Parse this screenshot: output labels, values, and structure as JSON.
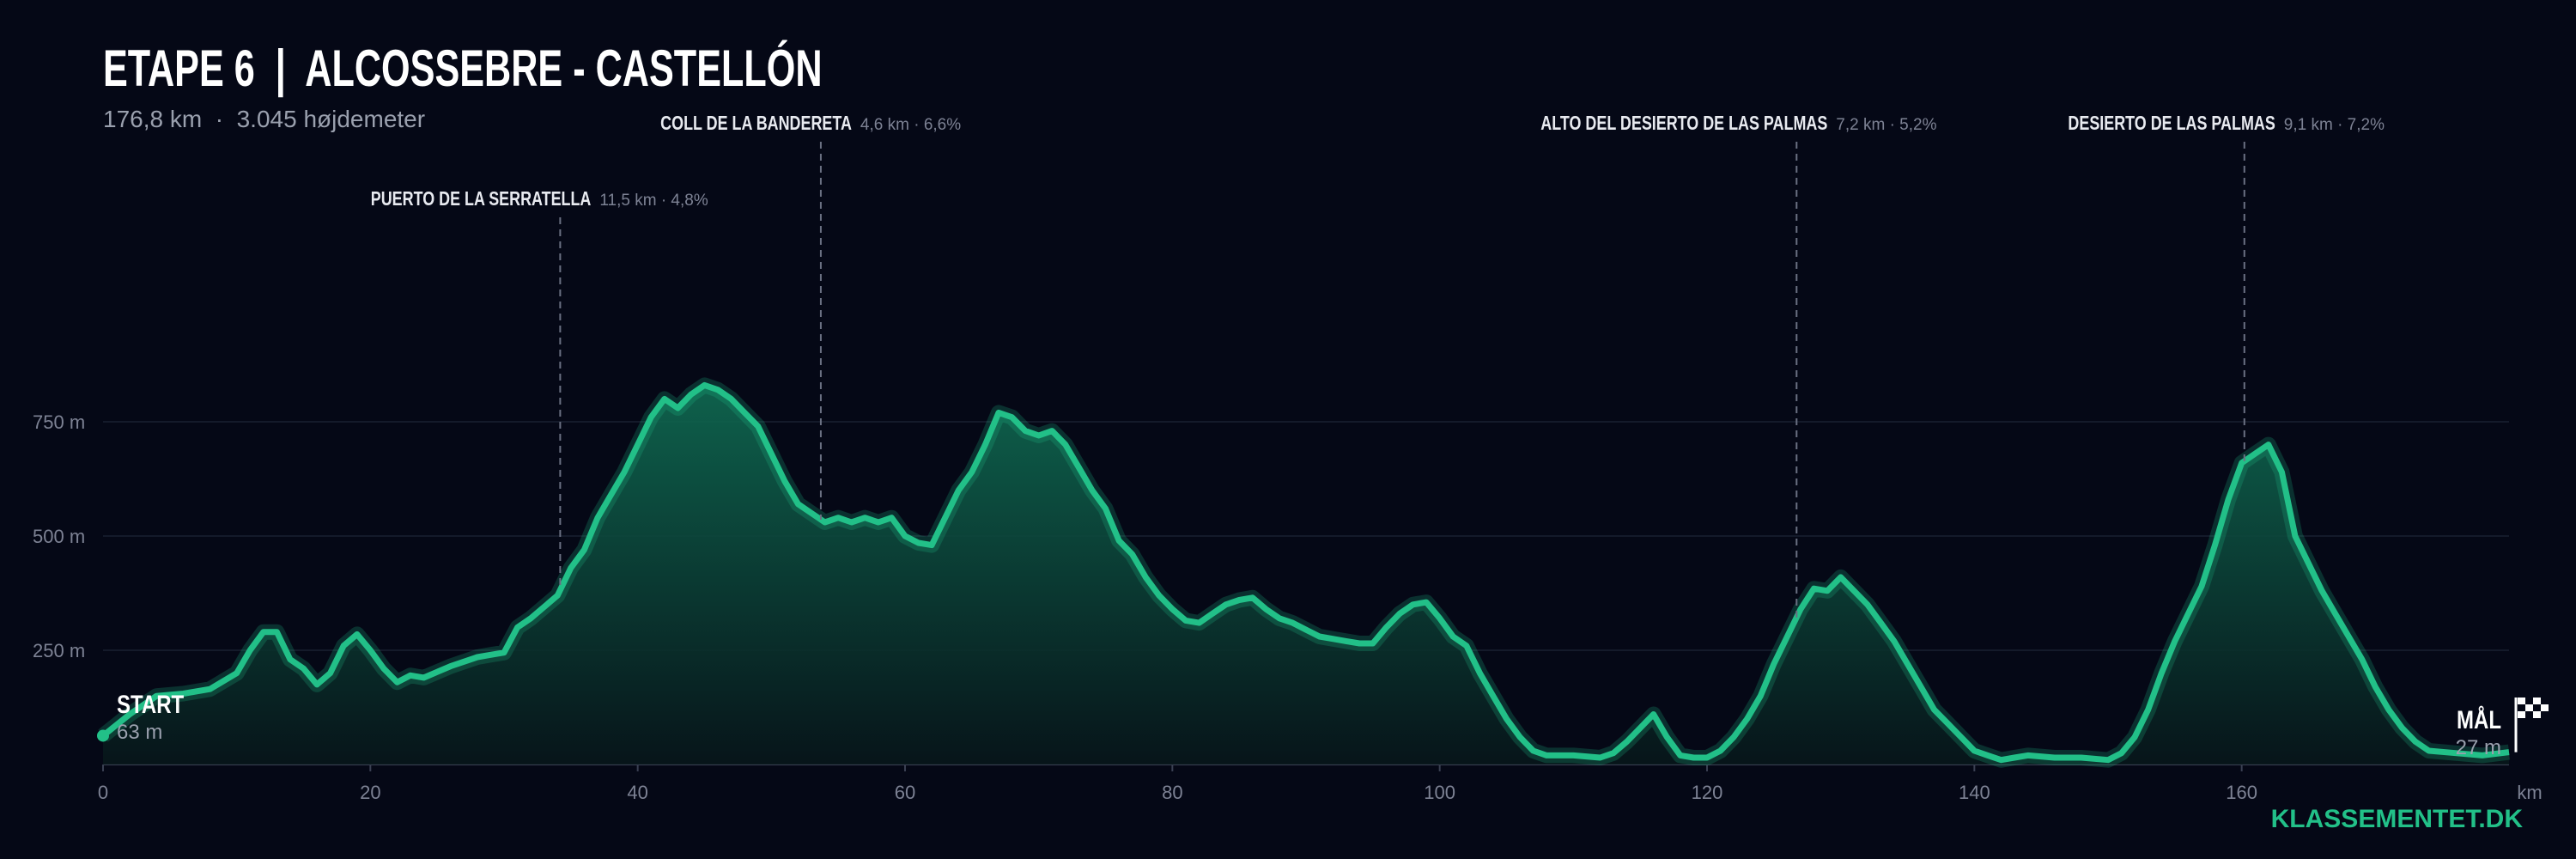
{
  "chart_data": {
    "type": "area",
    "title": "ETAPE 6  |  ALCOSSEBRE - CASTELLÓN",
    "subtitle": "176,8 km  ·  3.045 højdemeter",
    "x_label": "km",
    "brand": "KLASSEMENTET.DK",
    "color": "#22c088",
    "xlim": [
      0,
      180
    ],
    "ylim": [
      0,
      1500
    ],
    "xticks": [
      0,
      20,
      40,
      60,
      80,
      100,
      120,
      140,
      160
    ],
    "yticks": [
      {
        "value": 250,
        "label": "250 m"
      },
      {
        "value": 500,
        "label": "500 m"
      },
      {
        "value": 750,
        "label": "750 m"
      }
    ],
    "grid": true,
    "x": [
      0,
      2,
      4,
      6,
      8,
      10,
      11,
      12,
      13,
      14,
      15,
      16,
      17,
      18,
      19,
      20,
      21,
      22,
      23,
      24,
      26,
      28,
      29,
      30,
      31,
      32,
      34,
      35,
      36,
      37,
      38,
      39,
      40,
      41,
      42,
      43,
      44,
      45,
      46,
      47,
      48,
      49,
      50,
      51,
      52,
      53,
      54,
      55,
      56,
      57,
      58,
      59,
      60,
      61,
      62,
      63,
      64,
      65,
      66,
      67,
      68,
      69,
      70,
      71,
      72,
      73,
      74,
      75,
      76,
      77,
      78,
      79,
      80,
      81,
      82,
      83,
      84,
      85,
      86,
      87,
      88,
      89,
      90,
      91,
      92,
      93,
      94,
      95,
      96,
      97,
      98,
      99,
      100,
      101,
      102,
      103,
      104,
      105,
      106,
      107,
      108,
      110,
      112,
      113,
      114,
      115,
      116,
      117,
      118,
      119,
      120,
      121,
      122,
      123,
      124,
      125,
      126,
      127,
      128,
      129,
      130,
      131,
      132,
      133,
      134,
      135,
      136,
      137,
      138,
      139,
      140,
      141,
      142,
      143,
      144,
      146,
      148,
      150,
      151,
      152,
      153,
      154,
      155,
      156,
      157,
      158,
      159,
      160,
      161,
      162,
      163,
      164,
      165,
      166,
      167,
      168,
      169,
      170,
      171,
      172,
      173,
      174,
      176,
      178,
      180
    ],
    "values": [
      63,
      110,
      150,
      155,
      165,
      200,
      250,
      290,
      290,
      230,
      210,
      175,
      200,
      260,
      285,
      250,
      210,
      180,
      195,
      190,
      215,
      235,
      240,
      245,
      300,
      320,
      370,
      430,
      470,
      540,
      590,
      640,
      700,
      760,
      800,
      780,
      810,
      830,
      820,
      800,
      770,
      740,
      680,
      620,
      570,
      550,
      530,
      540,
      530,
      540,
      530,
      540,
      500,
      485,
      480,
      540,
      600,
      640,
      700,
      770,
      760,
      730,
      720,
      730,
      700,
      650,
      600,
      560,
      490,
      460,
      410,
      370,
      340,
      315,
      310,
      330,
      350,
      360,
      365,
      340,
      320,
      310,
      295,
      280,
      275,
      270,
      265,
      265,
      300,
      330,
      350,
      355,
      320,
      280,
      260,
      200,
      150,
      100,
      60,
      30,
      20,
      20,
      15,
      25,
      50,
      80,
      110,
      60,
      20,
      15,
      15,
      30,
      60,
      100,
      150,
      220,
      280,
      340,
      385,
      380,
      410,
      380,
      350,
      310,
      270,
      220,
      170,
      120,
      90,
      60,
      30,
      20,
      10,
      15,
      20,
      15,
      15,
      10,
      25,
      60,
      120,
      200,
      270,
      330,
      390,
      480,
      580,
      660,
      680,
      700,
      640,
      500,
      440,
      380,
      330,
      280,
      230,
      170,
      120,
      80,
      50,
      30,
      25,
      20,
      27
    ],
    "start": {
      "label": "START",
      "value": 63,
      "value_label": "63 m"
    },
    "finish": {
      "label": "MÅL",
      "value": 27,
      "value_label": "27 m"
    },
    "climbs": [
      {
        "name": "PUERTO DE LA SERRATELLA",
        "detail": "11,5 km · 4,8%",
        "x": 34.2
      },
      {
        "name": "COLL DE LA BANDERETA",
        "detail": "4,6 km · 6,6%",
        "x": 53.7
      },
      {
        "name": "ALTO DEL DESIERTO DE LAS PALMAS",
        "detail": "7,2 km · 5,2%",
        "x": 126.7
      },
      {
        "name": "DESIERTO DE LAS PALMAS",
        "detail": "9,1 km · 7,2%",
        "x": 160.2
      }
    ]
  }
}
